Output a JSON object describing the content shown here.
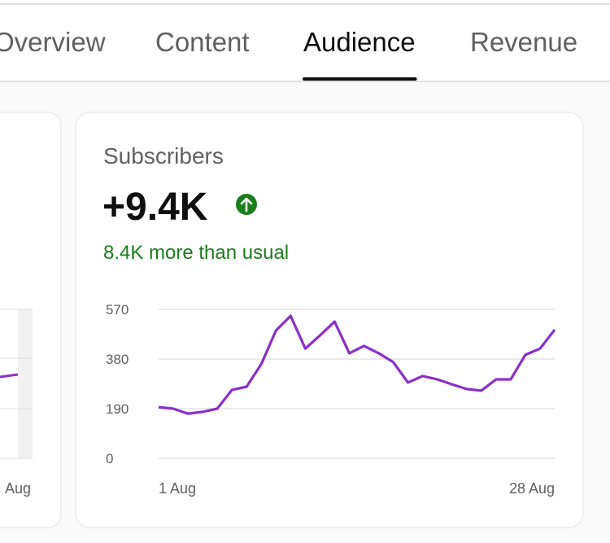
{
  "tabs": [
    "Overview",
    "Content",
    "Audience",
    "Revenue"
  ],
  "selected_tab": 2,
  "left_card": {
    "x_label": "Aug"
  },
  "card": {
    "title": "Subscribers",
    "value": "+9.4K",
    "comparison": "8.4K more than usual"
  },
  "chart_data": {
    "type": "line",
    "categories": [
      "1 Aug",
      null,
      null,
      null,
      null,
      null,
      null,
      null,
      null,
      null,
      null,
      null,
      null,
      null,
      null,
      null,
      null,
      null,
      null,
      null,
      null,
      null,
      null,
      null,
      null,
      null,
      null,
      "28 Aug"
    ],
    "values": [
      196,
      190,
      171,
      178,
      190,
      262,
      274,
      361,
      489,
      545,
      420,
      470,
      523,
      402,
      430,
      402,
      368,
      290,
      315,
      302,
      283,
      265,
      259,
      302,
      302,
      396,
      420,
      492
    ],
    "color": "#8b2fc9",
    "ylim": [
      0,
      570
    ],
    "yticks": [
      0,
      190,
      380,
      570
    ],
    "grid": true
  }
}
